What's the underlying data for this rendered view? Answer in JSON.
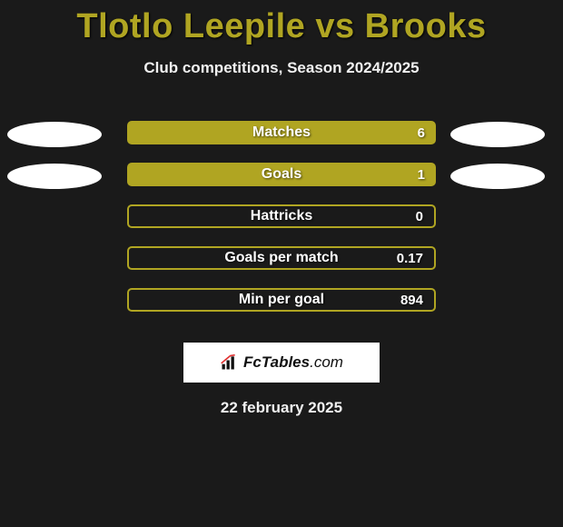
{
  "header": {
    "title": "Tlotlo Leepile vs Brooks",
    "title_color": "#b0a522",
    "subtitle": "Club competitions, Season 2024/2025"
  },
  "stats": [
    {
      "label": "Matches",
      "value": "6",
      "filled": true,
      "show_ellipses": true
    },
    {
      "label": "Goals",
      "value": "1",
      "filled": true,
      "show_ellipses": true
    },
    {
      "label": "Hattricks",
      "value": "0",
      "filled": false,
      "show_ellipses": false
    },
    {
      "label": "Goals per match",
      "value": "0.17",
      "filled": false,
      "show_ellipses": false
    },
    {
      "label": "Min per goal",
      "value": "894",
      "filled": false,
      "show_ellipses": false
    }
  ],
  "branding": {
    "text_main": "FcTables",
    "text_suffix": ".com"
  },
  "footer": {
    "date": "22 february 2025"
  },
  "style": {
    "bar_color": "#b0a522",
    "background": "#1a1a1a",
    "ellipse_color": "#ffffff",
    "title_fontsize": 38,
    "subtitle_fontsize": 17,
    "label_fontsize": 16
  }
}
